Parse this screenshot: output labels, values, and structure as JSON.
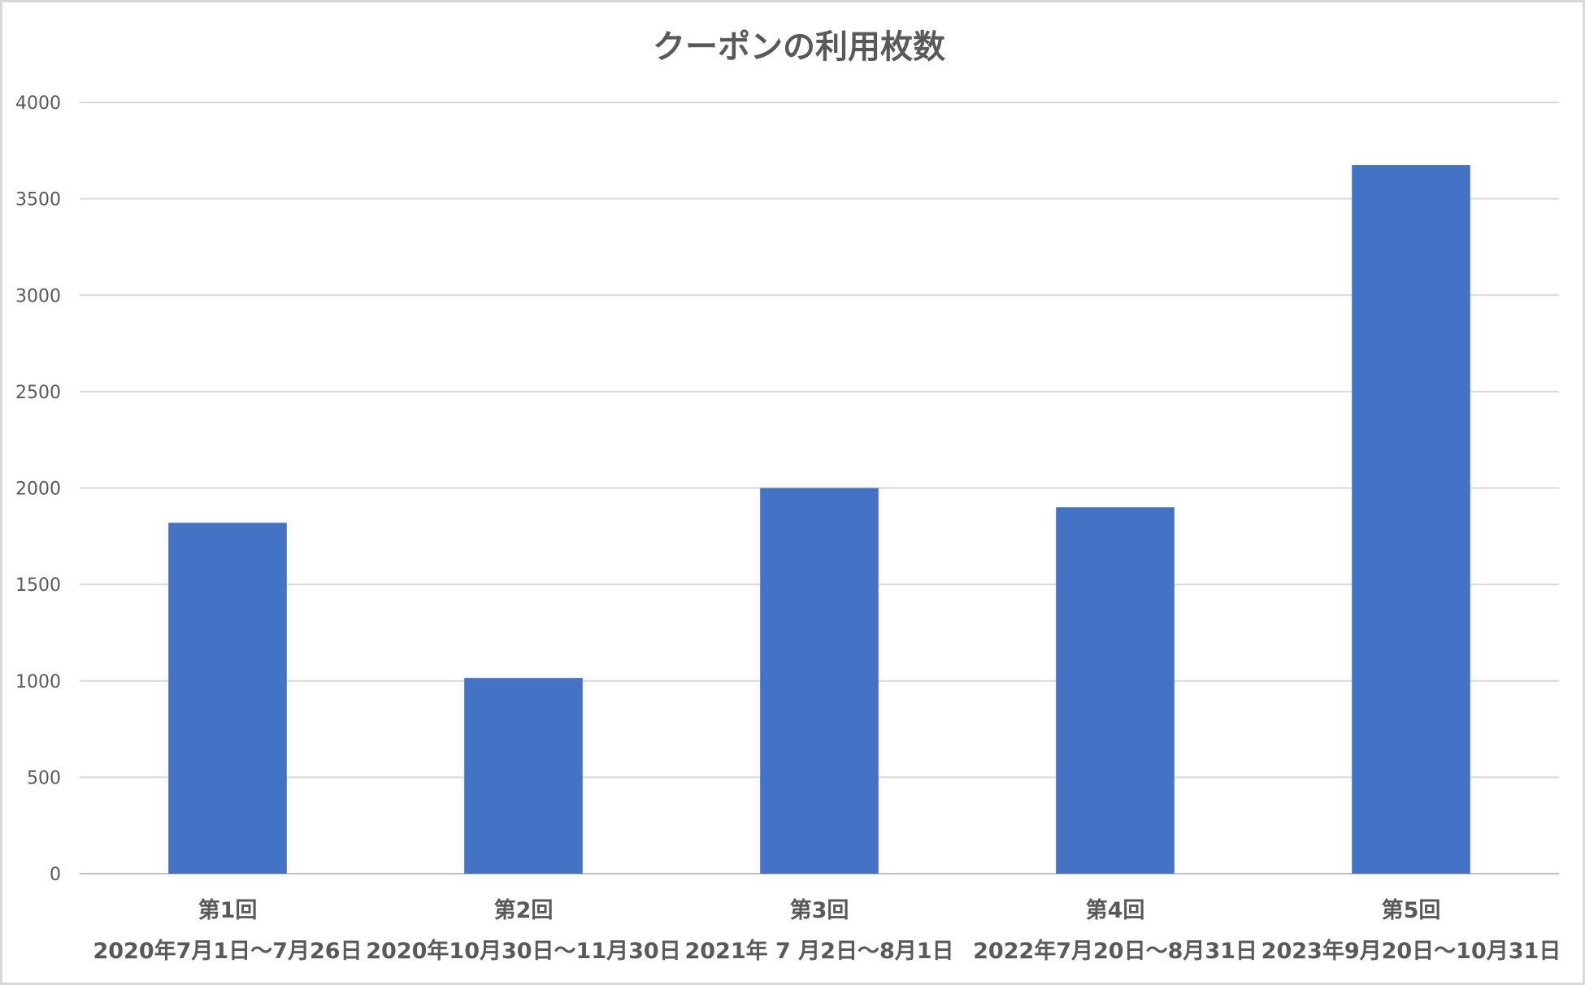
{
  "chart_data": {
    "type": "bar",
    "title": "クーポンの利用枚数",
    "xlabel": "",
    "ylabel": "",
    "categories": [
      [
        "第1回",
        "2020年7月1日～7月26日"
      ],
      [
        "第2回",
        "2020年10月30日～11月30日"
      ],
      [
        "第3回",
        "2021年 7 月2日～8月1日"
      ],
      [
        "第4回",
        "2022年7月20日～8月31日"
      ],
      [
        "第5回",
        "2023年9月20日～10月31日"
      ]
    ],
    "values": [
      1820,
      1015,
      2000,
      1900,
      3675
    ],
    "ylim": [
      0,
      4000
    ],
    "yticks": [
      0,
      500,
      1000,
      1500,
      2000,
      2500,
      3000,
      3500,
      4000
    ],
    "grid": true,
    "legend": "none",
    "bar_color": "#4472C4",
    "text_color": "#595959",
    "grid_color": "#D9D9D9"
  }
}
